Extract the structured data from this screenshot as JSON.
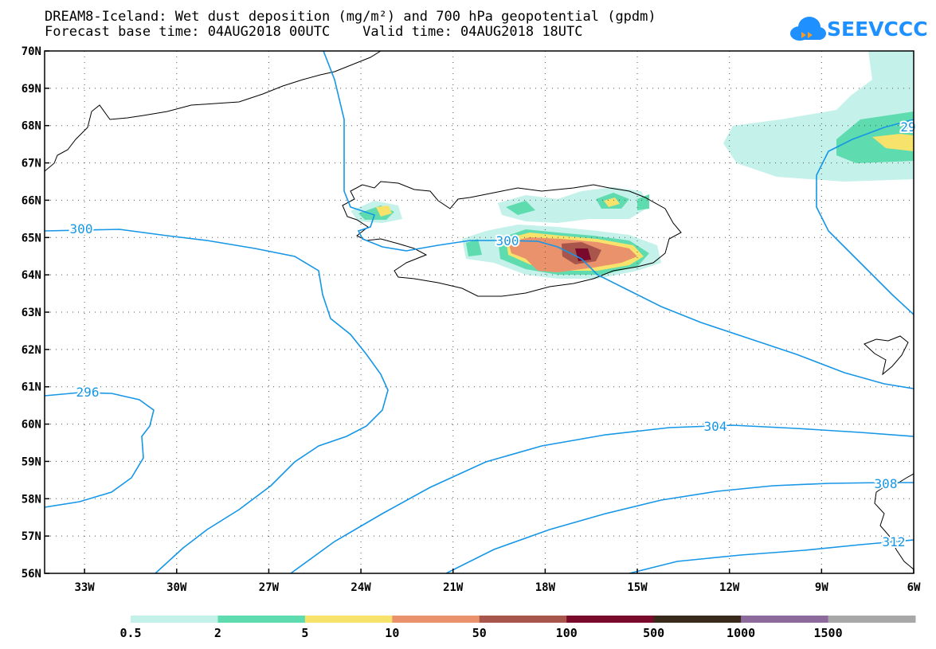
{
  "title_line1": "DREAM8-Iceland: Wet dust deposition (mg/m²) and 700 hPa geopotential (gpdm)",
  "title_line2": "Forecast base time: 04AUG2018 00UTC    Valid time: 04AUG2018 18UTC",
  "logo_text": "SEEVCCC",
  "lat_labels": [
    "70N",
    "69N",
    "68N",
    "67N",
    "66N",
    "65N",
    "64N",
    "63N",
    "62N",
    "61N",
    "60N",
    "59N",
    "58N",
    "57N",
    "56N"
  ],
  "lon_labels": [
    "33W",
    "30W",
    "27W",
    "24W",
    "21W",
    "18W",
    "15W",
    "12W",
    "9W",
    "6W"
  ],
  "contour_labels": [
    "300",
    "300",
    "296",
    "304",
    "308",
    "312",
    "29"
  ],
  "legend": {
    "labels": [
      "0.5",
      "2",
      "5",
      "10",
      "50",
      "100",
      "500",
      "1000",
      "1500"
    ],
    "colors": [
      "#c4f1ea",
      "#5fdbb0",
      "#f7e36c",
      "#e9926c",
      "#a8554c",
      "#7a0a2c",
      "#3a2a1c",
      "#8c6a9c",
      "#a8a8a8"
    ]
  },
  "colors": {
    "contour": "#1596e6",
    "coast": "#000000",
    "grid": "#555555"
  }
}
